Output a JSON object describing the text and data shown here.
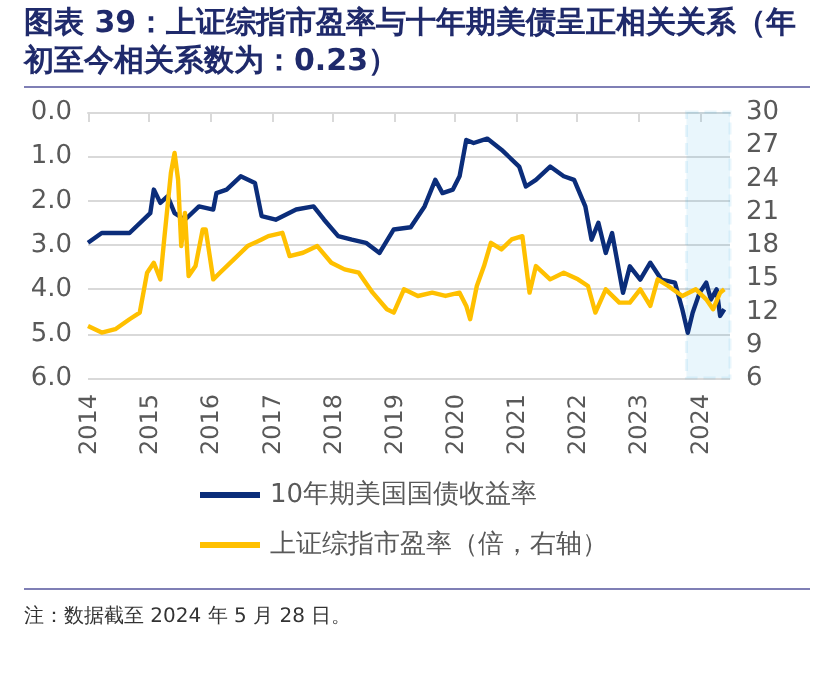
{
  "chart_data": {
    "type": "line",
    "title": "图表 39：上证综指市盈率与十年期美债呈正相关关系（年初至今相关系数为：0.23）",
    "annotations": [
      "注：数据截至 2024 年 5 月 28 日。"
    ],
    "xlim": [
      "2014-01-01",
      "2024-07-01"
    ],
    "xticks": [
      "2014",
      "2015",
      "2016",
      "2017",
      "2018",
      "2019",
      "2020",
      "2021",
      "2022",
      "2023",
      "2024"
    ],
    "ylim": [
      6,
      0
    ],
    "yticks": [
      {
        "value": 0,
        "label": "0.0"
      },
      {
        "value": 1,
        "label": "1.0"
      },
      {
        "value": 2,
        "label": "2.0"
      },
      {
        "value": 3,
        "label": "3.0"
      },
      {
        "value": 4,
        "label": "4.0"
      },
      {
        "value": 5,
        "label": "5.0"
      },
      {
        "value": 6,
        "label": "6.0"
      }
    ],
    "y2lim": [
      6,
      30
    ],
    "y2ticks": [
      6,
      9,
      12,
      15,
      18,
      21,
      24,
      27,
      30
    ],
    "bands": [
      {
        "axis": "x",
        "from": "2023-10-15",
        "to": "2024-07-01",
        "color": "#29abe2"
      }
    ],
    "grid": "y",
    "legend": "bottom",
    "marker": "none",
    "line_style": "solid",
    "series": [
      {
        "name": "10年期美国国债收益率",
        "color": "#0b2d7a",
        "x": [
          "2014-01-01",
          "2014-03-24",
          "2014-09-06",
          "2015-01-08",
          "2015-01-29",
          "2015-03-09",
          "2015-04-22",
          "2015-06-02",
          "2015-08-03",
          "2015-10-26",
          "2016-01-19",
          "2016-02-07",
          "2016-04-08",
          "2016-07-01",
          "2016-09-24",
          "2016-11-03",
          "2017-01-26",
          "2017-05-28",
          "2017-09-09",
          "2017-11-11",
          "2018-02-03",
          "2018-04-26",
          "2018-07-19",
          "2018-10-08",
          "2019-01-01",
          "2019-04-12",
          "2019-07-04",
          "2019-09-06",
          "2019-10-19",
          "2019-12-20",
          "2020-01-29",
          "2020-03-09",
          "2020-04-22",
          "2020-07-12",
          "2020-10-05",
          "2021-01-19",
          "2021-02-28",
          "2021-04-29",
          "2021-07-23",
          "2021-10-12",
          "2021-12-13",
          "2022-02-18",
          "2022-03-27",
          "2022-05-07",
          "2022-06-20",
          "2022-07-28",
          "2022-10-01",
          "2022-11-11",
          "2023-01-12",
          "2023-03-13",
          "2023-05-18",
          "2023-08-07",
          "2023-09-20",
          "2023-10-23",
          "2023-11-21",
          "2024-01-01",
          "2024-02-10",
          "2024-03-09",
          "2024-04-12",
          "2024-05-03",
          "2024-05-28"
        ],
        "values": [
          2.95,
          2.73,
          2.73,
          2.28,
          1.75,
          2.05,
          1.9,
          2.28,
          2.43,
          2.13,
          2.2,
          1.83,
          1.75,
          1.45,
          1.6,
          2.35,
          2.43,
          2.2,
          2.13,
          2.43,
          2.8,
          2.88,
          2.95,
          3.18,
          2.65,
          2.6,
          2.13,
          1.53,
          1.83,
          1.75,
          1.45,
          0.63,
          0.7,
          0.6,
          0.85,
          1.23,
          1.68,
          1.53,
          1.23,
          1.45,
          1.53,
          2.13,
          2.88,
          2.5,
          3.18,
          2.73,
          4.08,
          3.48,
          3.78,
          3.4,
          3.78,
          3.85,
          4.45,
          4.98,
          4.53,
          4.08,
          3.85,
          4.23,
          4.0,
          4.6,
          4.45
        ]
      },
      {
        "name": "上证综指市盈率（倍，右轴）",
        "color": "#ffc000",
        "axis": "y2",
        "x": [
          "2014-01-01",
          "2014-03-24",
          "2014-06-13",
          "2014-09-06",
          "2014-11-06",
          "2014-12-20",
          "2015-01-29",
          "2015-03-09",
          "2015-04-01",
          "2015-05-11",
          "2015-06-02",
          "2015-06-23",
          "2015-07-12",
          "2015-08-03",
          "2015-08-25",
          "2015-10-05",
          "2015-11-17",
          "2015-12-05",
          "2016-01-19",
          "2016-02-28",
          "2016-05-21",
          "2016-08-11",
          "2016-11-03",
          "2016-12-13",
          "2017-03-07",
          "2017-04-19",
          "2017-07-08",
          "2017-10-01",
          "2017-12-24",
          "2018-03-13",
          "2018-06-06",
          "2018-08-28",
          "2018-11-21",
          "2019-01-01",
          "2019-03-03",
          "2019-05-25",
          "2019-08-19",
          "2019-11-06",
          "2020-01-29",
          "2020-03-09",
          "2020-04-01",
          "2020-05-11",
          "2020-06-23",
          "2020-08-03",
          "2020-10-05",
          "2020-12-05",
          "2021-02-07",
          "2021-03-22",
          "2021-04-29",
          "2021-07-23",
          "2021-10-12",
          "2022-01-05",
          "2022-03-06",
          "2022-04-19",
          "2022-06-20",
          "2022-09-09",
          "2022-11-11",
          "2023-01-12",
          "2023-03-13",
          "2023-04-26",
          "2023-06-28",
          "2023-09-20",
          "2023-12-10",
          "2024-02-10",
          "2024-03-22",
          "2024-05-03",
          "2024-05-28"
        ],
        "values": [
          10.7,
          10.1,
          10.4,
          11.3,
          11.9,
          15.5,
          16.4,
          14.9,
          18.5,
          24.5,
          26.3,
          23.9,
          17.9,
          20.9,
          15.2,
          16.1,
          19.4,
          19.4,
          14.9,
          15.5,
          16.7,
          17.9,
          18.5,
          18.8,
          19.1,
          17.0,
          17.3,
          17.9,
          16.4,
          15.8,
          15.5,
          13.7,
          12.2,
          11.9,
          14.0,
          13.4,
          13.7,
          13.4,
          13.7,
          12.5,
          11.3,
          14.3,
          16.1,
          18.2,
          17.6,
          18.5,
          18.8,
          13.7,
          16.1,
          14.9,
          15.5,
          14.9,
          14.3,
          11.9,
          14.0,
          12.8,
          12.8,
          14.0,
          12.5,
          14.9,
          14.3,
          13.4,
          14.0,
          13.1,
          12.2,
          13.7,
          14.0
        ]
      }
    ]
  }
}
